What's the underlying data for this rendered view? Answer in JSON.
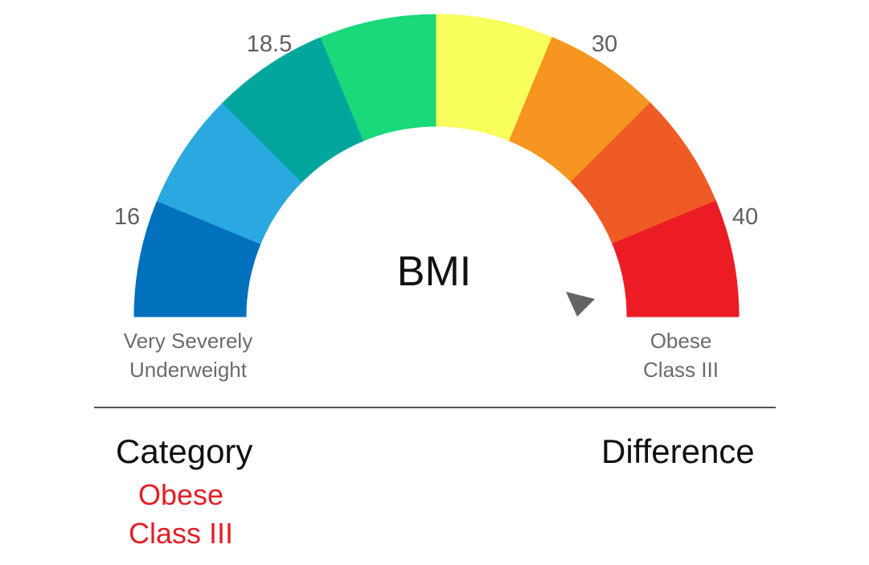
{
  "gauge": {
    "title": "BMI",
    "ticks": [
      {
        "value": "16"
      },
      {
        "value": "18.5"
      },
      {
        "value": "30"
      },
      {
        "value": "40"
      }
    ],
    "left_end_label": {
      "line1": "Very Severely",
      "line2": "Underweight"
    },
    "right_end_label": {
      "line1": "Obese",
      "line2": "Class III"
    },
    "segment_colors": [
      "#0171bd",
      "#2aa9e0",
      "#02a69c",
      "#1ad97a",
      "#f8fe5b",
      "#f6951f",
      "#ef5b25",
      "#ec1c24"
    ],
    "needle_color": "#646464",
    "indicated_category": "Obese Class III"
  },
  "results": {
    "category_heading": "Category",
    "category_value_line1": "Obese",
    "category_value_line2": "Class III",
    "category_color": "#e21e26",
    "difference_heading": "Difference"
  }
}
